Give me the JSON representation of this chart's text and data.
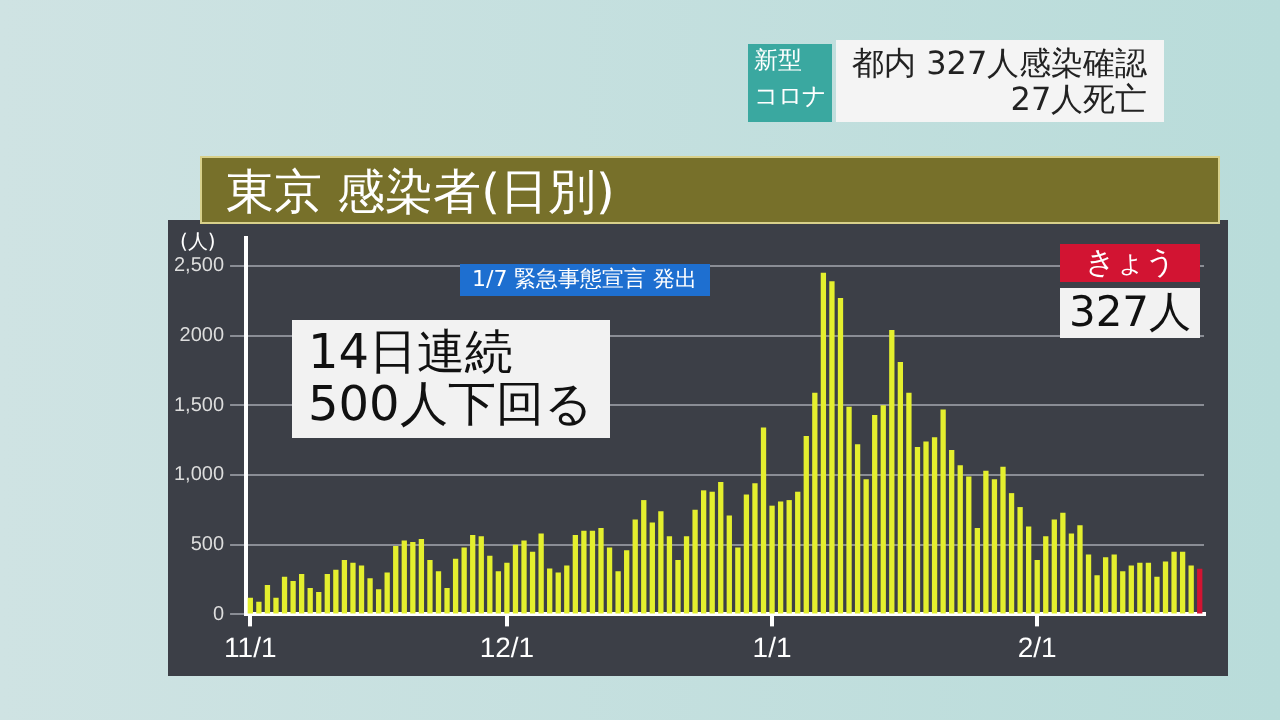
{
  "chart_data": {
    "type": "bar",
    "title": "東京 感染者(日別)",
    "ylabel": "(人)",
    "categories": [
      "11/1",
      null,
      null,
      null,
      null,
      null,
      null,
      null,
      null,
      null,
      null,
      null,
      null,
      null,
      null,
      null,
      null,
      null,
      null,
      null,
      null,
      null,
      null,
      null,
      null,
      null,
      null,
      null,
      null,
      null,
      "12/1",
      null,
      null,
      null,
      null,
      null,
      null,
      null,
      null,
      null,
      null,
      null,
      null,
      null,
      null,
      null,
      null,
      null,
      null,
      null,
      null,
      null,
      null,
      null,
      null,
      null,
      null,
      null,
      null,
      null,
      null,
      "1/1",
      null,
      null,
      null,
      null,
      null,
      null,
      null,
      null,
      null,
      null,
      null,
      null,
      null,
      null,
      null,
      null,
      null,
      null,
      null,
      null,
      null,
      null,
      null,
      null,
      null,
      null,
      null,
      null,
      null,
      null,
      "2/1",
      null,
      null,
      null,
      null,
      null,
      null,
      null,
      null,
      null,
      null,
      null,
      null,
      null,
      null,
      null,
      null,
      null,
      null,
      null
    ],
    "values": [
      120,
      90,
      210,
      120,
      270,
      240,
      290,
      190,
      160,
      290,
      320,
      390,
      370,
      350,
      260,
      180,
      300,
      490,
      530,
      520,
      540,
      390,
      310,
      190,
      400,
      480,
      570,
      560,
      420,
      310,
      370,
      500,
      530,
      450,
      580,
      330,
      300,
      350,
      570,
      600,
      600,
      620,
      480,
      310,
      460,
      680,
      820,
      660,
      740,
      560,
      390,
      560,
      750,
      890,
      880,
      950,
      710,
      480,
      860,
      940,
      1340,
      780,
      810,
      820,
      880,
      1280,
      1590,
      2450,
      2390,
      2270,
      1490,
      1220,
      970,
      1430,
      1500,
      2040,
      1810,
      1590,
      1200,
      1240,
      1270,
      1470,
      1180,
      1070,
      990,
      620,
      1030,
      970,
      1060,
      870,
      770,
      630,
      390,
      560,
      680,
      730,
      580,
      640,
      430,
      280,
      410,
      430,
      310,
      350,
      370,
      370,
      270,
      380,
      450,
      450,
      350,
      327
    ],
    "colors": [
      "#e4ef2e",
      "#e4ef2e",
      "#e4ef2e",
      "#e4ef2e",
      "#e4ef2e",
      "#e4ef2e",
      "#e4ef2e",
      "#e4ef2e",
      "#e4ef2e",
      "#e4ef2e",
      "#e4ef2e",
      "#e4ef2e",
      "#e4ef2e",
      "#e4ef2e",
      "#e4ef2e",
      "#e4ef2e",
      "#e4ef2e",
      "#e4ef2e",
      "#e4ef2e",
      "#e4ef2e",
      "#e4ef2e",
      "#e4ef2e",
      "#e4ef2e",
      "#e4ef2e",
      "#e4ef2e",
      "#e4ef2e",
      "#e4ef2e",
      "#e4ef2e",
      "#e4ef2e",
      "#e4ef2e",
      "#e4ef2e",
      "#e4ef2e",
      "#e4ef2e",
      "#e4ef2e",
      "#e4ef2e",
      "#e4ef2e",
      "#e4ef2e",
      "#e4ef2e",
      "#e4ef2e",
      "#e4ef2e",
      "#e4ef2e",
      "#e4ef2e",
      "#e4ef2e",
      "#e4ef2e",
      "#e4ef2e",
      "#e4ef2e",
      "#e4ef2e",
      "#e4ef2e",
      "#e4ef2e",
      "#e4ef2e",
      "#e4ef2e",
      "#e4ef2e",
      "#e4ef2e",
      "#e4ef2e",
      "#e4ef2e",
      "#e4ef2e",
      "#e4ef2e",
      "#e4ef2e",
      "#e4ef2e",
      "#e4ef2e",
      "#e4ef2e",
      "#e4ef2e",
      "#e4ef2e",
      "#e4ef2e",
      "#e4ef2e",
      "#e4ef2e",
      "#e4ef2e",
      "#e4ef2e",
      "#e4ef2e",
      "#e4ef2e",
      "#e4ef2e",
      "#e4ef2e",
      "#e4ef2e",
      "#e4ef2e",
      "#e4ef2e",
      "#e4ef2e",
      "#e4ef2e",
      "#e4ef2e",
      "#e4ef2e",
      "#e4ef2e",
      "#e4ef2e",
      "#e4ef2e",
      "#e4ef2e",
      "#e4ef2e",
      "#e4ef2e",
      "#e4ef2e",
      "#e4ef2e",
      "#e4ef2e",
      "#e4ef2e",
      "#e4ef2e",
      "#e4ef2e",
      "#e4ef2e",
      "#e4ef2e",
      "#e4ef2e",
      "#e4ef2e",
      "#e4ef2e",
      "#e4ef2e",
      "#e4ef2e",
      "#e4ef2e",
      "#e4ef2e",
      "#e4ef2e",
      "#e4ef2e",
      "#e4ef2e",
      "#e4ef2e",
      "#e4ef2e",
      "#e4ef2e",
      "#e4ef2e",
      "#e4ef2e",
      "#e4ef2e",
      "#e4ef2e",
      "#e4ef2e",
      "#d21432"
    ],
    "ylim": [
      0,
      2700
    ],
    "yticks": [
      0,
      500,
      {
        "value": 1000,
        "label": "1,000"
      },
      {
        "value": 1500,
        "label": "1,500"
      },
      2000,
      {
        "value": 2500,
        "label": "2,500"
      }
    ],
    "grid": "y",
    "legend": false,
    "annotations": [
      "1/7 緊急事態宣言 発出",
      "14日連続\n500人下回る",
      "きょう",
      "327人",
      "新型",
      "コロナ",
      "都内 327人感染確認\n27人死亡"
    ]
  }
}
